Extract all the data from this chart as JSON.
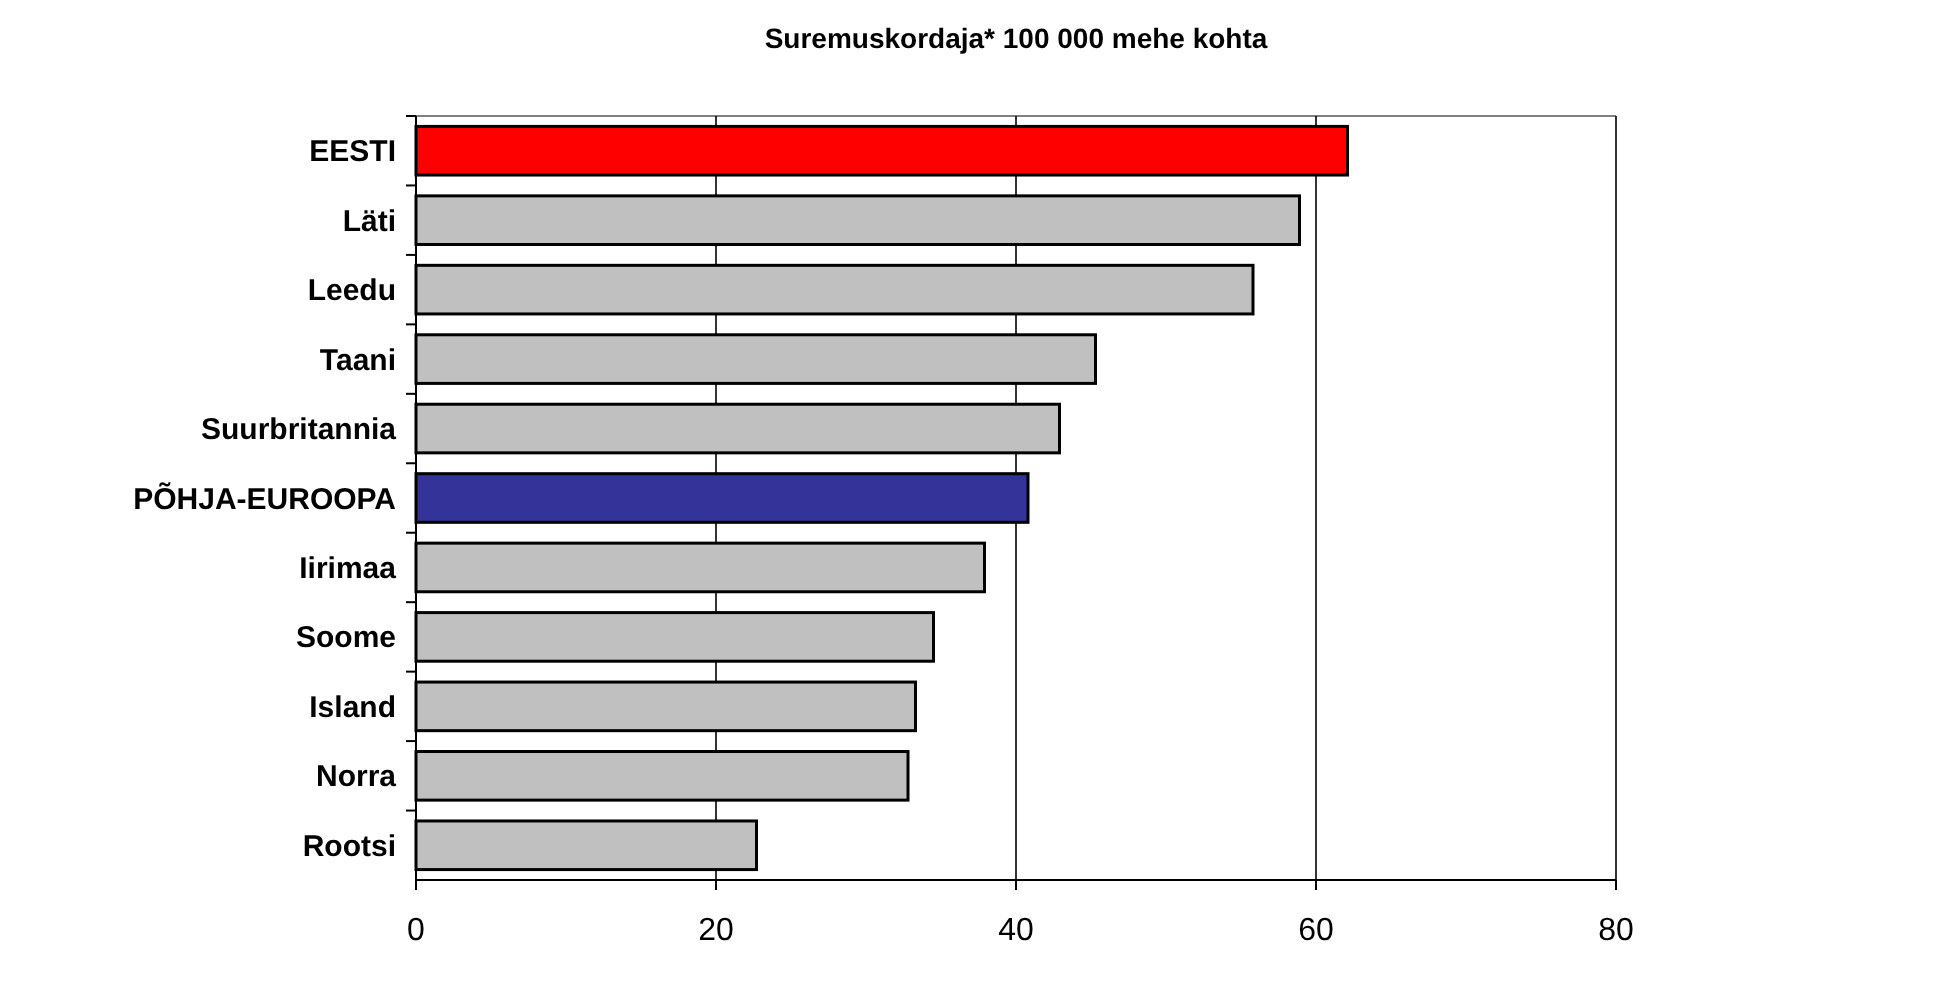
{
  "chart_data": {
    "type": "bar",
    "orientation": "horizontal",
    "title": "Suremuskordaja* 100 000 mehe kohta",
    "categories": [
      "EESTI",
      "Läti",
      "Leedu",
      "Taani",
      "Suurbritannia",
      "PÕHJA-EUROOPA",
      "Iirimaa",
      "Soome",
      "Island",
      "Norra",
      "Rootsi"
    ],
    "values": [
      62.1,
      58.9,
      55.8,
      45.3,
      42.9,
      40.8,
      37.9,
      34.5,
      33.3,
      32.8,
      22.7
    ],
    "colors": [
      "#ff0000",
      "#c0c0c0",
      "#c0c0c0",
      "#c0c0c0",
      "#c0c0c0",
      "#333399",
      "#c0c0c0",
      "#c0c0c0",
      "#c0c0c0",
      "#c0c0c0",
      "#c0c0c0"
    ],
    "xlim": [
      0,
      80
    ],
    "xticks": [
      0,
      20,
      40,
      60,
      80
    ],
    "grid": "x"
  }
}
